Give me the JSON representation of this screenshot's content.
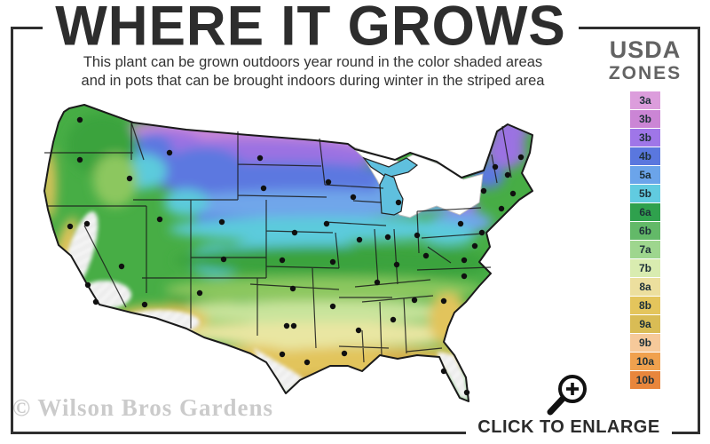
{
  "header": {
    "title": "WHERE IT GROWS",
    "subtitle_line1": "This plant can be grown outdoors year round in the color shaded areas",
    "subtitle_line2": "and in pots that can be brought indoors during winter in the striped area"
  },
  "legend": {
    "title_line1": "USDA",
    "title_line2": "ZONES",
    "zones": [
      {
        "label": "3a",
        "color": "#DC9DDC"
      },
      {
        "label": "3b",
        "color": "#CB85D5"
      },
      {
        "label": "3b",
        "color": "#9F76E8"
      },
      {
        "label": "4b",
        "color": "#5A77DE"
      },
      {
        "label": "5a",
        "color": "#6BA4EA"
      },
      {
        "label": "5b",
        "color": "#61CBE0"
      },
      {
        "label": "6a",
        "color": "#2FA14D"
      },
      {
        "label": "6b",
        "color": "#63B968"
      },
      {
        "label": "7a",
        "color": "#9ED68E"
      },
      {
        "label": "7b",
        "color": "#D9ECB0"
      },
      {
        "label": "8a",
        "color": "#ECDF9E"
      },
      {
        "label": "8b",
        "color": "#E4C55C"
      },
      {
        "label": "9a",
        "color": "#D9BC55"
      },
      {
        "label": "9b",
        "color": "#F6C99A"
      },
      {
        "label": "10a",
        "color": "#F0A14E"
      },
      {
        "label": "10b",
        "color": "#E8863C"
      }
    ]
  },
  "footer": {
    "watermark": "© Wilson Bros Gardens",
    "enlarge_label": "CLICK TO ENLARGE"
  },
  "map": {
    "palette": {
      "basegreen": "#47AD45",
      "pink": "#C987D6",
      "purple": "#9B72E2",
      "blue": "#5C78E0",
      "lightblue": "#6FA6EA",
      "cyan": "#5BCBDC",
      "green": "#3AA33C",
      "lightgreen": "#8CC75E",
      "palegreen": "#C9E49C",
      "paleyellow": "#E9E6A2",
      "gold": "#E2C45C",
      "mustard": "#D2AB48",
      "mitten": "#5FC0DE",
      "dot": "#101010",
      "border": "#1a1a1a"
    },
    "city_dots": [
      [
        60,
        27
      ],
      [
        60,
        72
      ],
      [
        116,
        93
      ],
      [
        161,
        64
      ],
      [
        263,
        70
      ],
      [
        267,
        104
      ],
      [
        220,
        142
      ],
      [
        150,
        139
      ],
      [
        68,
        144
      ],
      [
        107,
        192
      ],
      [
        49,
        147
      ],
      [
        69,
        213
      ],
      [
        78,
        232
      ],
      [
        133,
        235
      ],
      [
        195,
        222
      ],
      [
        222,
        184
      ],
      [
        302,
        154
      ],
      [
        288,
        185
      ],
      [
        300,
        217
      ],
      [
        293,
        259
      ],
      [
        301,
        259
      ],
      [
        288,
        291
      ],
      [
        316,
        300
      ],
      [
        340,
        97
      ],
      [
        368,
        114
      ],
      [
        338,
        144
      ],
      [
        345,
        187
      ],
      [
        345,
        237
      ],
      [
        358,
        290
      ],
      [
        374,
        264
      ],
      [
        413,
        252
      ],
      [
        395,
        210
      ],
      [
        417,
        190
      ],
      [
        375,
        162
      ],
      [
        407,
        159
      ],
      [
        440,
        157
      ],
      [
        419,
        120
      ],
      [
        437,
        230
      ],
      [
        470,
        231
      ],
      [
        493,
        203
      ],
      [
        493,
        185
      ],
      [
        450,
        180
      ],
      [
        489,
        144
      ],
      [
        515,
        107
      ],
      [
        528,
        80
      ],
      [
        542,
        89
      ],
      [
        557,
        69
      ],
      [
        548,
        110
      ],
      [
        535,
        127
      ],
      [
        513,
        154
      ],
      [
        505,
        169
      ],
      [
        470,
        310
      ],
      [
        496,
        334
      ]
    ]
  }
}
